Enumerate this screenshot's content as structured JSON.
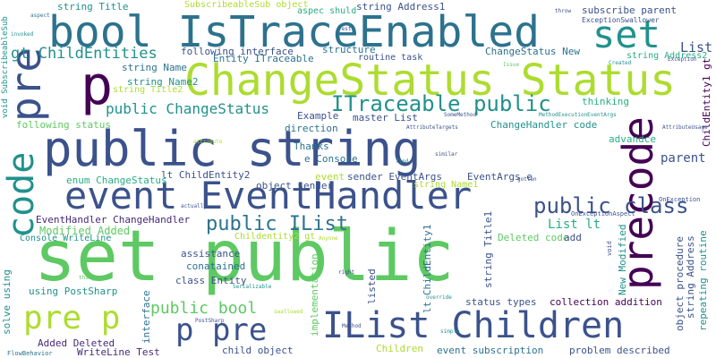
{
  "words": [
    {
      "text": "public string",
      "color": "#3b528b"
    },
    {
      "text": "set public",
      "color": "#5ec962"
    },
    {
      "text": "ChangeStatus Status",
      "color": "#addc30"
    },
    {
      "text": "bool IsTraceEnabled",
      "color": "#2c728e"
    },
    {
      "text": "event EventHandler",
      "color": "#3b528b"
    },
    {
      "text": "IList Children",
      "color": "#3b528b"
    },
    {
      "text": "p pre",
      "color": "#3b528b"
    },
    {
      "text": "pre p",
      "color": "#addc30"
    },
    {
      "text": "p",
      "color": "#440154"
    },
    {
      "text": "set",
      "color": "#21918c"
    },
    {
      "text": "pre",
      "color": "#3b528b"
    },
    {
      "text": "code",
      "color": "#21918c"
    },
    {
      "text": "precode",
      "color": "#440154"
    },
    {
      "text": "public class",
      "color": "#3b528b"
    },
    {
      "text": "ITraceable public",
      "color": "#21918c"
    },
    {
      "text": "public ChangeStatus",
      "color": "#21918c"
    },
    {
      "text": "public IList",
      "color": "#2c728e"
    },
    {
      "text": "public bool",
      "color": "#5ec962"
    },
    {
      "text": "gt ChildEntities",
      "color": "#21918c"
    },
    {
      "text": "string Title",
      "color": "#21918c"
    },
    {
      "text": "SubscribeableSub object",
      "color": "#addc30"
    },
    {
      "text": "aspec shuld",
      "color": "#28ae80"
    },
    {
      "text": "string Address1",
      "color": "#3b528b"
    },
    {
      "text": "subscribe parent",
      "color": "#3b528b"
    },
    {
      "text": "ExceptionSwallower",
      "color": "#3b528b"
    },
    {
      "text": "List",
      "color": "#3b528b"
    },
    {
      "text": "following interface",
      "color": "#3b528b"
    },
    {
      "text": "Entity ITraceable",
      "color": "#2c728e"
    },
    {
      "text": "structure",
      "color": "#2c728e"
    },
    {
      "text": "ChangeStatus New",
      "color": "#2c728e"
    },
    {
      "text": "string Address2",
      "color": "#28ae80"
    },
    {
      "text": "string Name",
      "color": "#2c728e"
    },
    {
      "text": "routine task",
      "color": "#3b528b"
    },
    {
      "text": "string Name2",
      "color": "#21918c"
    },
    {
      "text": "string Title2",
      "color": "#addc30"
    },
    {
      "text": "Example",
      "color": "#3b528b"
    },
    {
      "text": "master List",
      "color": "#3b528b"
    },
    {
      "text": "thinking",
      "color": "#28ae80"
    },
    {
      "text": "following status",
      "color": "#5ec962"
    },
    {
      "text": "direction",
      "color": "#2c728e"
    },
    {
      "text": "ChangeHandler code",
      "color": "#21918c"
    },
    {
      "text": "Thanks",
      "color": "#2c728e"
    },
    {
      "text": "e Console",
      "color": "#2c728e"
    },
    {
      "text": "advandce",
      "color": "#28ae80"
    },
    {
      "text": "parent",
      "color": "#3b528b"
    },
    {
      "text": "enum ChangeStatus",
      "color": "#28ae80"
    },
    {
      "text": "lt ChildEntity2",
      "color": "#3b528b"
    },
    {
      "text": "event",
      "color": "#addc30"
    },
    {
      "text": "sender EventArgs",
      "color": "#3b528b"
    },
    {
      "text": "EventArgs e",
      "color": "#3b528b"
    },
    {
      "text": "object sender",
      "color": "#3b528b"
    },
    {
      "text": "string Name1",
      "color": "#addc30"
    },
    {
      "text": "EventHandler ChangeHandler",
      "color": "#482878"
    },
    {
      "text": "List lt",
      "color": "#28ae80"
    },
    {
      "text": "Modified Added",
      "color": "#5ec962"
    },
    {
      "text": "Console WriteLine",
      "color": "#21918c"
    },
    {
      "text": "Childentity2 gt",
      "color": "#addc30"
    },
    {
      "text": "Deleted code",
      "color": "#5ec962"
    },
    {
      "text": "add",
      "color": "#3b528b"
    },
    {
      "text": "assistance",
      "color": "#3b528b"
    },
    {
      "text": "conatained",
      "color": "#2c728e"
    },
    {
      "text": "class Entity",
      "color": "#3b528b"
    },
    {
      "text": "using PostSharp",
      "color": "#21918c"
    },
    {
      "text": "collection addition",
      "color": "#440154"
    },
    {
      "text": "status types",
      "color": "#3b528b"
    },
    {
      "text": "Added Deleted",
      "color": "#482878"
    },
    {
      "text": "WriteLine Test",
      "color": "#482878"
    },
    {
      "text": "child object",
      "color": "#3b528b"
    },
    {
      "text": "Children",
      "color": "#addc30"
    },
    {
      "text": "event subscription",
      "color": "#2c728e"
    },
    {
      "text": "problem described",
      "color": "#3b528b"
    },
    {
      "text": "solve using",
      "color": "#21918c"
    },
    {
      "text": "interface",
      "color": "#2c728e"
    },
    {
      "text": "implementation",
      "color": "#5ec962"
    },
    {
      "text": "lt ChildEntity1",
      "color": "#2c728e"
    },
    {
      "text": "listed",
      "color": "#3b528b"
    },
    {
      "text": "string Title1",
      "color": "#3b528b"
    },
    {
      "text": "New Modified",
      "color": "#21918c"
    },
    {
      "text": "object procedure",
      "color": "#3b528b"
    },
    {
      "text": "string Address",
      "color": "#3b528b"
    },
    {
      "text": "repeating routine",
      "color": "#21918c"
    },
    {
      "text": "ChildEntity1 gt",
      "color": "#440154"
    },
    {
      "text": "void SubscribeableSub",
      "color": "#21918c"
    },
    {
      "text": "FlowBehavior",
      "color": "#2c728e"
    },
    {
      "text": "OnExceptionAspect",
      "color": "#3b528b"
    },
    {
      "text": "OnException",
      "color": "#3b528b"
    },
    {
      "text": "aspect",
      "color": "#2c728e"
    },
    {
      "text": "invoked",
      "color": "#21918c"
    },
    {
      "text": "Test",
      "color": "#3b528b"
    },
    {
      "text": "throw",
      "color": "#3b528b"
    },
    {
      "text": "Exception",
      "color": "#3b528b"
    },
    {
      "text": "Created",
      "color": "#21918c"
    },
    {
      "text": "SomeMethod",
      "color": "#3b528b"
    },
    {
      "text": "AttributeTargets",
      "color": "#3b528b"
    },
    {
      "text": "AttributeUsage",
      "color": "#3b528b"
    },
    {
      "text": "similar",
      "color": "#3b528b"
    },
    {
      "text": "find",
      "color": "#21918c"
    },
    {
      "text": "gotten",
      "color": "#3b528b"
    },
    {
      "text": "actually",
      "color": "#3b528b"
    },
    {
      "text": "attribute",
      "color": "#addc30"
    },
    {
      "text": "Anyone",
      "color": "#addc30"
    },
    {
      "text": "right",
      "color": "#3b528b"
    },
    {
      "text": "Method",
      "color": "#3b528b"
    },
    {
      "text": "Serializable",
      "color": "#21918c"
    },
    {
      "text": "PostSharp",
      "color": "#3b528b"
    },
    {
      "text": "swallowed",
      "color": "#addc30"
    },
    {
      "text": "simple",
      "color": "#21918c"
    },
    {
      "text": "override",
      "color": "#21918c"
    },
    {
      "text": "MethodExecutionEventArgs",
      "color": "#21918c"
    },
    {
      "text": "void",
      "color": "#3b528b"
    },
    {
      "text": "thing",
      "color": "#5ec962"
    },
    {
      "text": "Issue",
      "color": "#5ec962"
    }
  ]
}
